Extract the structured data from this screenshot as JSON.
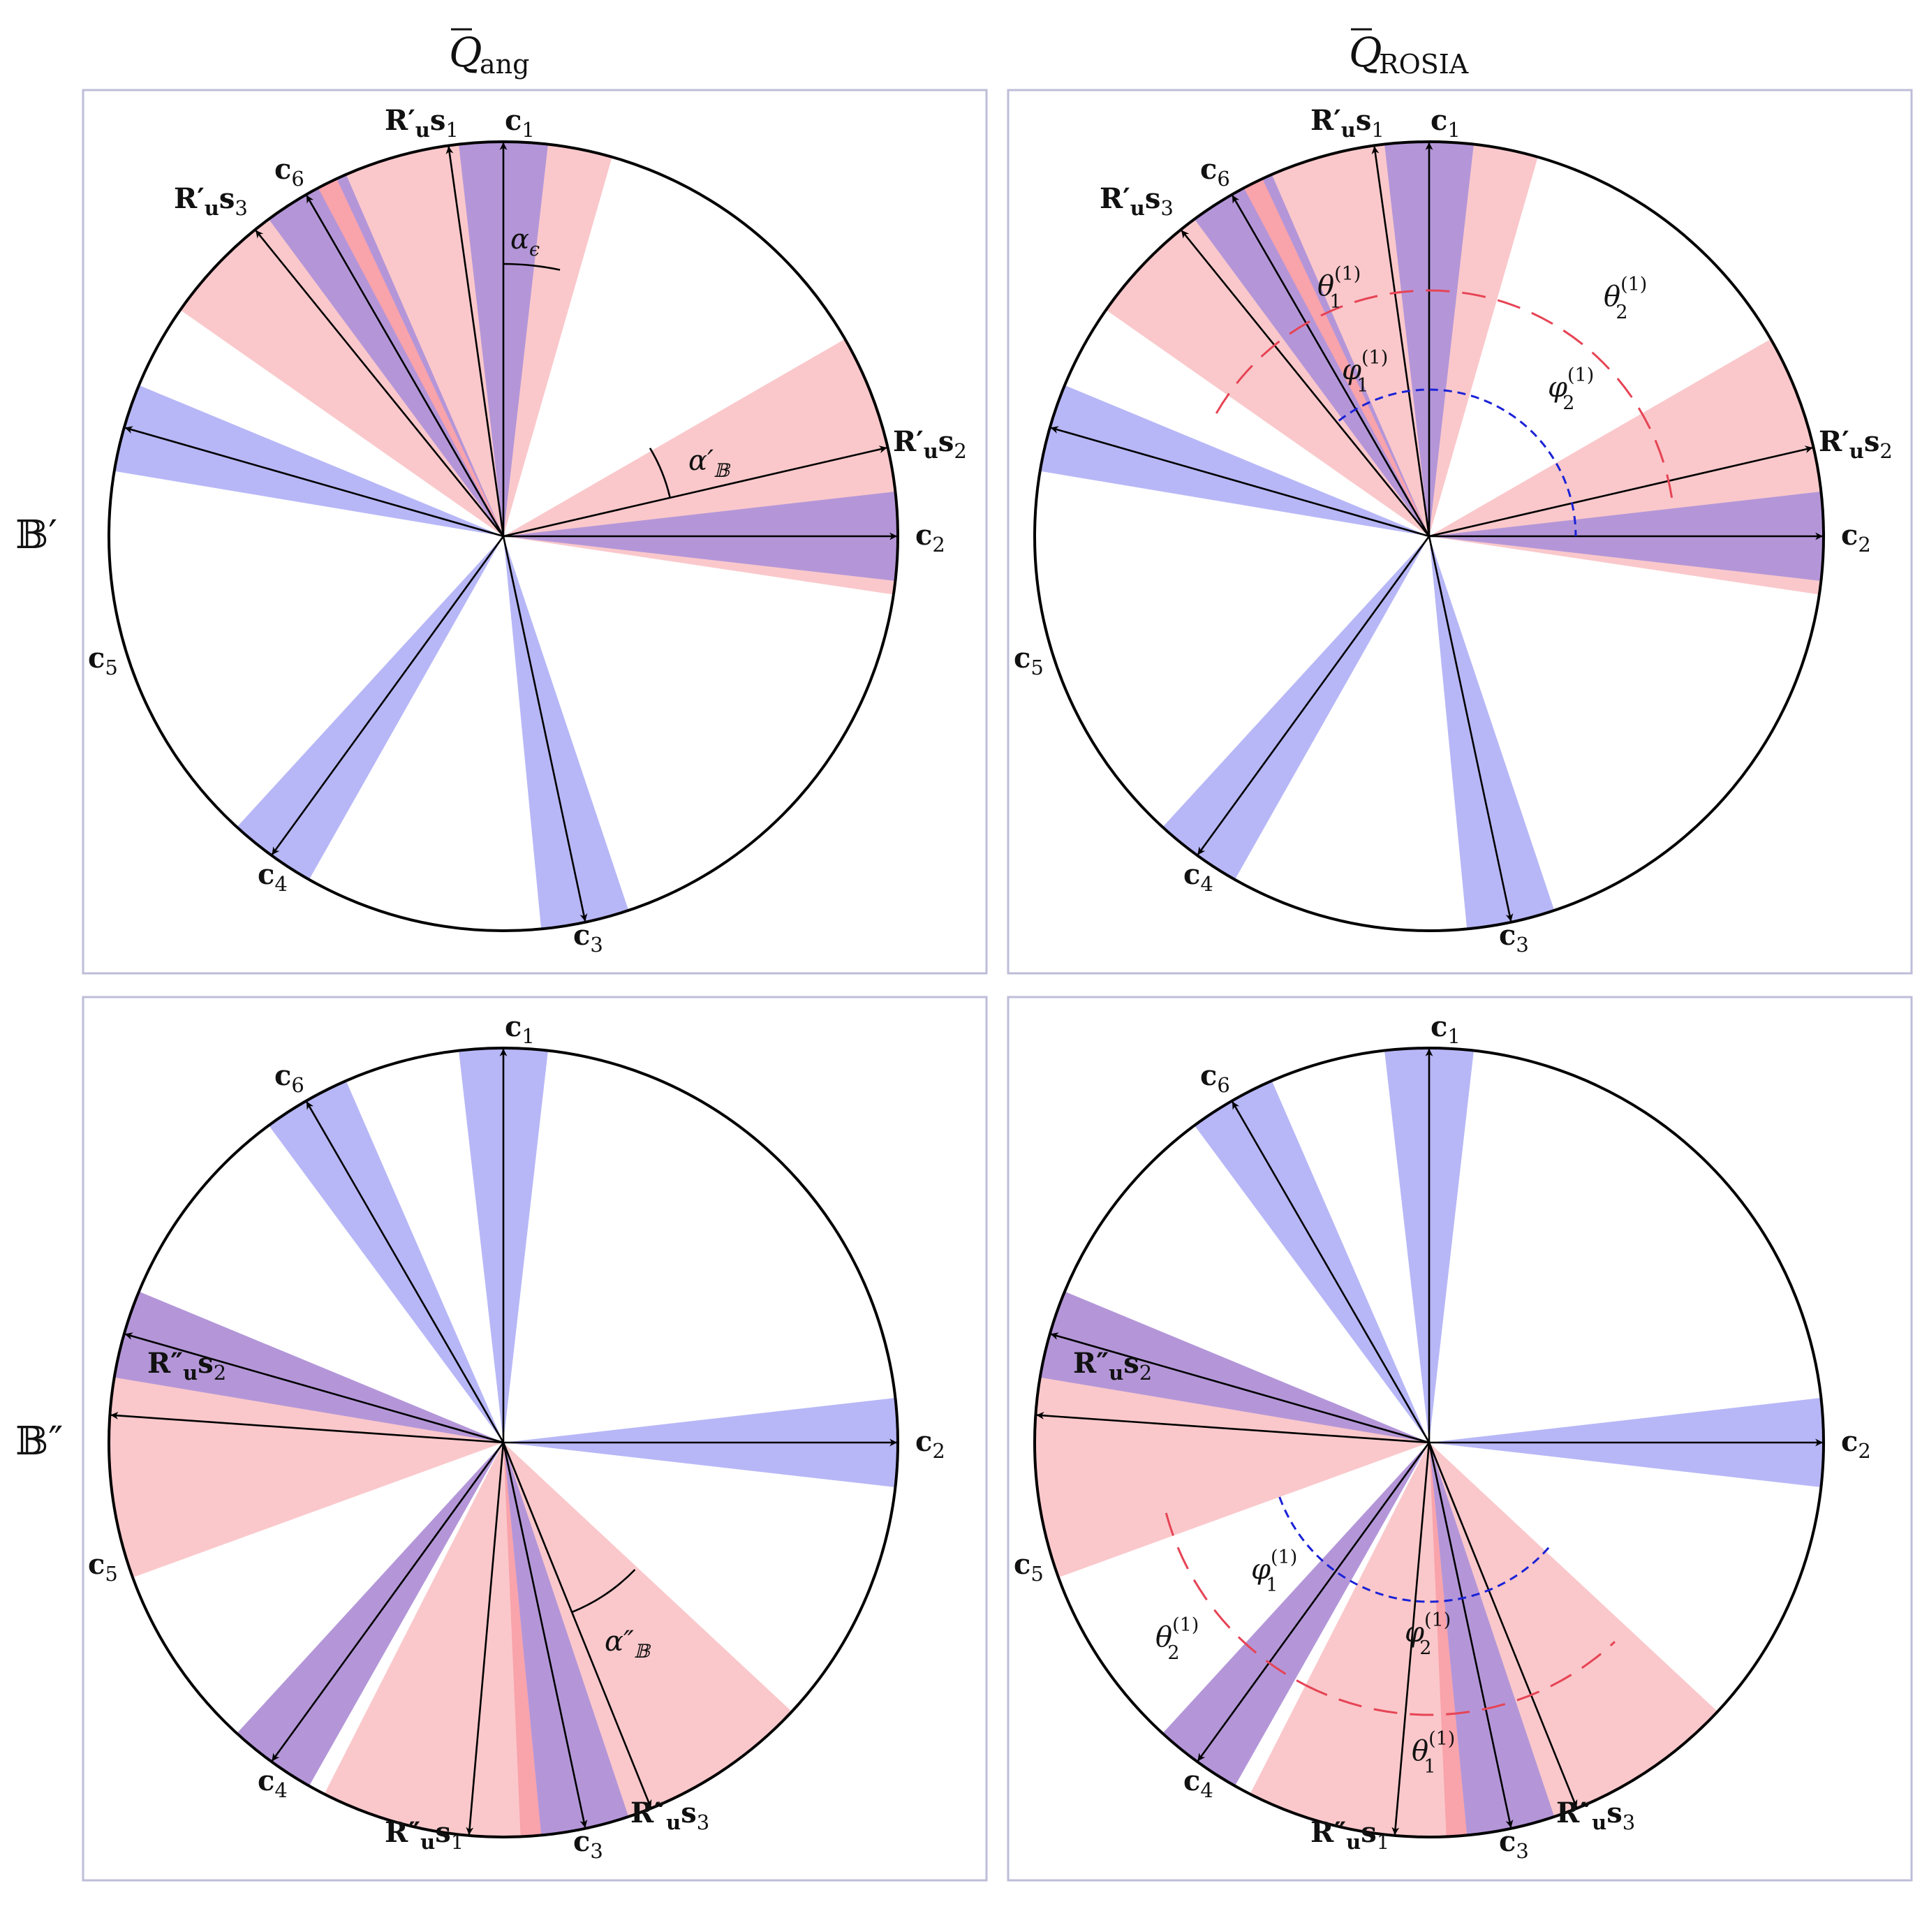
{
  "titles": {
    "col_left": "Q",
    "col_left_sub": "ang",
    "col_right": "Q",
    "col_right_sub": "ROSIA"
  },
  "row_labels": {
    "top": "𝔹′",
    "bottom": "𝔹″"
  },
  "vector_labels": {
    "c1": [
      "c",
      "1"
    ],
    "c2": [
      "c",
      "2"
    ],
    "c3": [
      "c",
      "3"
    ],
    "c4": [
      "c",
      "4"
    ],
    "c5": [
      "c",
      "5"
    ],
    "c6": [
      "c",
      "6"
    ],
    "rs1_p": [
      "R′",
      "u",
      "s",
      "1"
    ],
    "rs2_p": [
      "R′",
      "u",
      "s",
      "2"
    ],
    "rs3_p": [
      "R′",
      "u",
      "s",
      "3"
    ],
    "rs1_pp": [
      "R″",
      "u",
      "s",
      "1"
    ],
    "rs2_pp": [
      "R″",
      "u",
      "s",
      "2"
    ],
    "rs3_pp": [
      "R″",
      "u",
      "s",
      "3"
    ]
  },
  "angle_labels": {
    "alpha_eps": [
      "α",
      "ϵ"
    ],
    "alpha_B_p": [
      "α′",
      "𝔹"
    ],
    "alpha_B_pp": [
      "α″",
      "𝔹"
    ],
    "theta1": [
      "θ",
      "1",
      "(1)"
    ],
    "theta2": [
      "θ",
      "2",
      "(1)"
    ],
    "phi1": [
      "φ",
      "1",
      "(1)"
    ],
    "phi2": [
      "φ",
      "2",
      "(1)"
    ]
  },
  "colors": {
    "blue_cone": "#b7b7f7",
    "red_cone": "#fac8cb",
    "overlap": "#b496d8",
    "red_strong": "#f9a3ab",
    "panel_border": "#bdbdd8",
    "theta_arc": "#e64455",
    "phi_arc": "#1a22d6"
  }
}
